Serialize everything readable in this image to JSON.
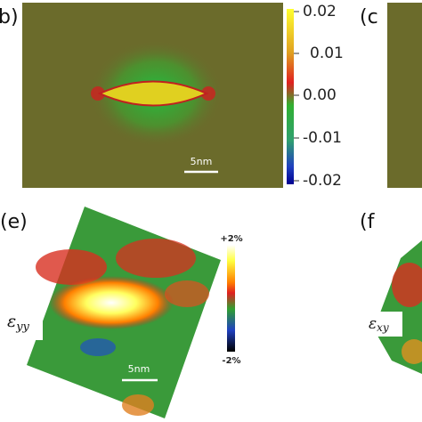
{
  "panels": [
    {
      "label": "b)",
      "colorbar": {
        "ticks": [
          "0.02",
          "0.01",
          "0.00",
          "-0.01",
          "-0.02"
        ]
      },
      "scale_bar": "5nm"
    },
    {
      "label": "(c"
    },
    {
      "label": "(e)",
      "colorbar": {
        "max": "+2%",
        "min": "-2%"
      },
      "strain_symbol": "ε",
      "strain_sub": "yy",
      "scale_bar": "5nm"
    },
    {
      "label": "(f",
      "strain_symbol": "ε",
      "strain_sub": "xy"
    }
  ]
}
